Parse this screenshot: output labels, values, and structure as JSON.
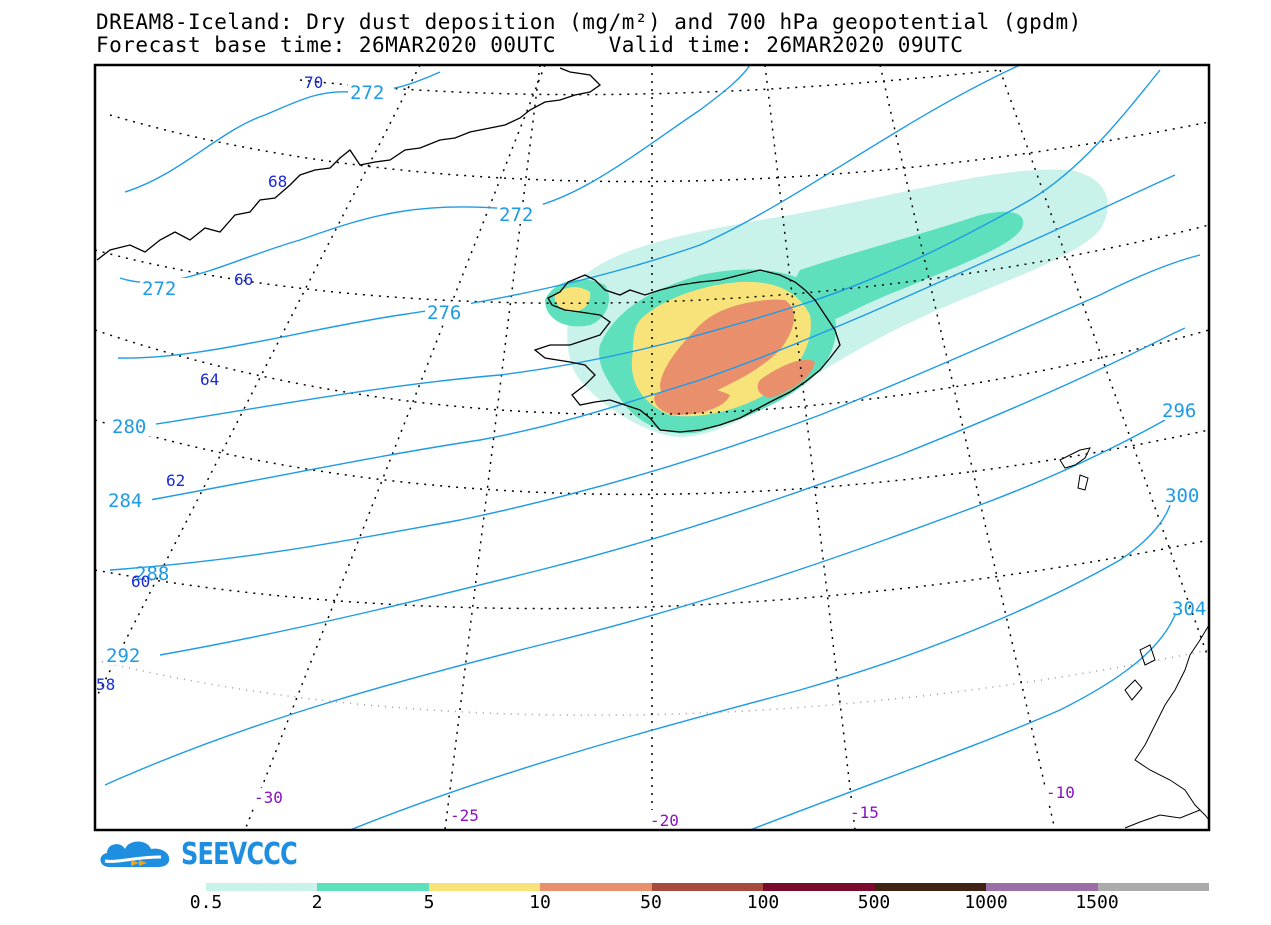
{
  "header": {
    "title_line1": "DREAM8-Iceland: Dry dust deposition (mg/m²) and 700 hPa geopotential (gpdm)",
    "title_line2": "Forecast base time: 26MAR2020 00UTC    Valid time: 26MAR2020 09UTC"
  },
  "map": {
    "region": "Iceland",
    "contour_labels": {
      "geopotential": [
        "272",
        "272",
        "272",
        "276",
        "280",
        "284",
        "288",
        "292",
        "296",
        "300",
        "304"
      ],
      "latitude": [
        "70",
        "68",
        "66",
        "64",
        "62",
        "60",
        "58"
      ],
      "longitude": [
        "-30",
        "-25",
        "-20",
        "-15",
        "-10"
      ]
    },
    "colors": {
      "contour": "#1e9be6",
      "latitude_label": "#1a2bd6",
      "longitude_label": "#8a12c4",
      "coast": "#000000",
      "frame": "#000000"
    }
  },
  "legend": {
    "labels": [
      "0.5",
      "2",
      "5",
      "10",
      "50",
      "100",
      "500",
      "1000",
      "1500"
    ],
    "colors": [
      "#c8f2ea",
      "#5fe0bd",
      "#f7e37a",
      "#e98f6b",
      "#a84a3c",
      "#7a0b2c",
      "#3f2414",
      "#9a6fa6",
      "#ababab"
    ]
  },
  "logo": {
    "text": "SEEVCCC",
    "icon": "cloud-logo-icon"
  }
}
